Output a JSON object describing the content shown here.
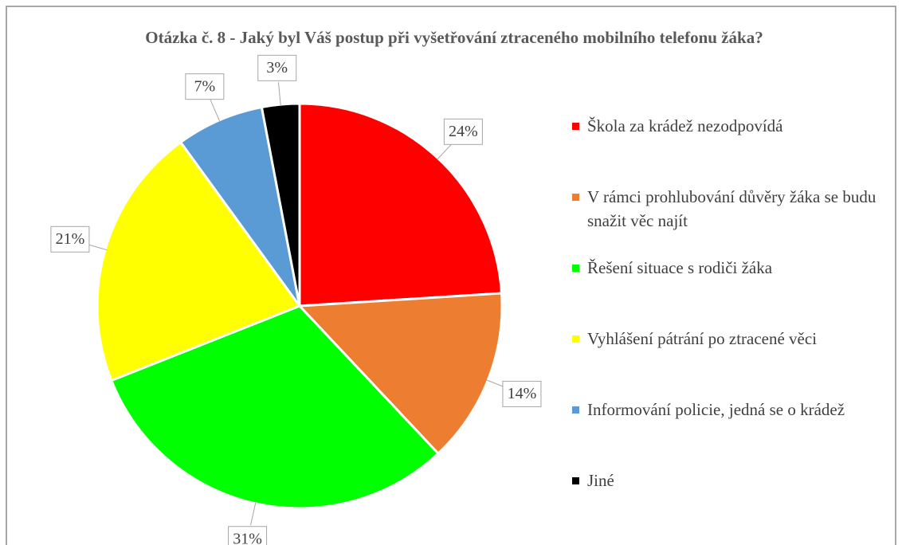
{
  "chart_data": {
    "type": "pie",
    "title": "Otázka č. 8 - Jaký byl Váš postup při vyšetřování ztraceného mobilního telefonu žáka?",
    "categories": [
      "Škola za krádež nezodpovídá",
      "V rámci prohlubování důvěry žáka se budu snažit věc najít",
      "Řešení situace s rodiči žáka",
      "Vyhlášení pátrání po ztracené věci",
      "Informování policie, jedná se o krádež",
      "Jiné"
    ],
    "values": [
      24,
      14,
      31,
      21,
      7,
      3
    ],
    "value_labels": [
      "24%",
      "14%",
      "31%",
      "21%",
      "7%",
      "3%"
    ],
    "colors": [
      "#ff0000",
      "#ed7d31",
      "#00ff00",
      "#ffff00",
      "#5b9bd5",
      "#000000"
    ],
    "legend": "right"
  }
}
